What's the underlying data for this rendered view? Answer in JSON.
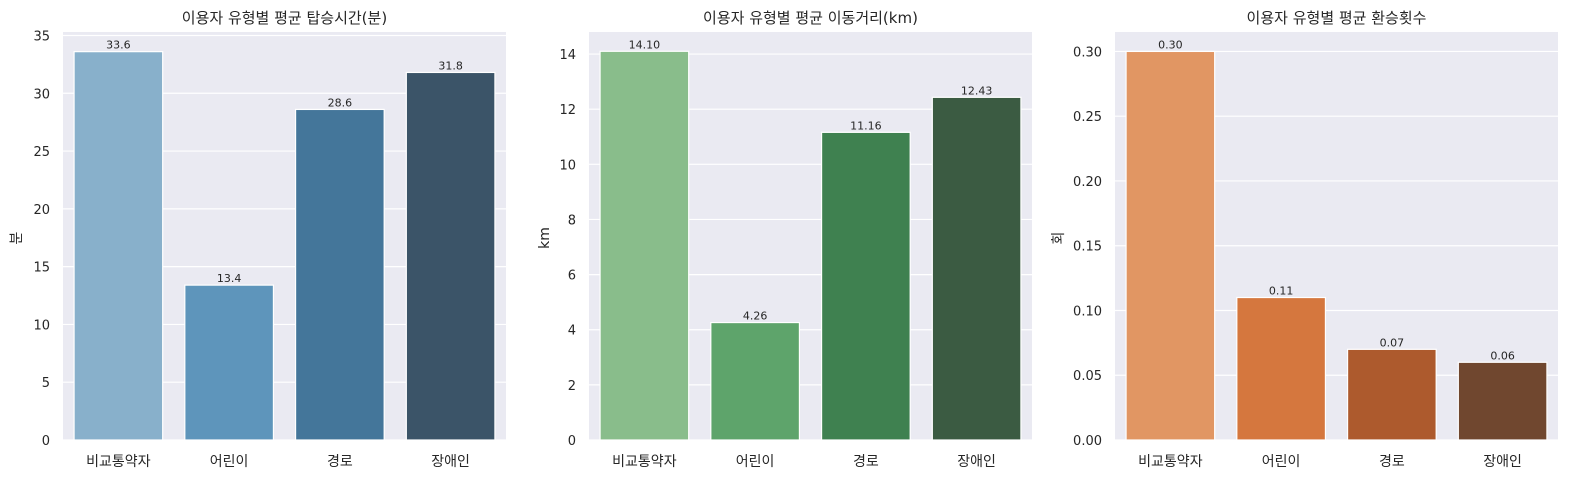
{
  "chart_data": [
    {
      "type": "bar",
      "title": "이용자 유형별 평균 탑승시간(분)",
      "xlabel": "",
      "ylabel": "분",
      "categories": [
        "비교통약자",
        "어린이",
        "경로",
        "장애인"
      ],
      "values": [
        33.6,
        13.4,
        28.6,
        31.8
      ],
      "data_labels": [
        "33.6",
        "13.4",
        "28.6",
        "31.8"
      ],
      "colors": [
        "#88b0cb",
        "#5e95bb",
        "#44769a",
        "#3b5468"
      ],
      "ylim": [
        0,
        35.3
      ],
      "yticks": [
        0,
        5,
        10,
        15,
        20,
        25,
        30,
        35
      ],
      "ytick_labels": [
        "0",
        "5",
        "10",
        "15",
        "20",
        "25",
        "30",
        "35"
      ],
      "grid": true
    },
    {
      "type": "bar",
      "title": "이용자 유형별 평균 이동거리(km)",
      "xlabel": "",
      "ylabel": "km",
      "categories": [
        "비교통약자",
        "어린이",
        "경로",
        "장애인"
      ],
      "values": [
        14.1,
        4.26,
        11.16,
        12.43
      ],
      "data_labels": [
        "14.10",
        "4.26",
        "11.16",
        "12.43"
      ],
      "colors": [
        "#89bd8b",
        "#5ea46b",
        "#3f8150",
        "#3b5b42"
      ],
      "ylim": [
        0,
        14.8
      ],
      "yticks": [
        0,
        2,
        4,
        6,
        8,
        10,
        12,
        14
      ],
      "ytick_labels": [
        "0",
        "2",
        "4",
        "6",
        "8",
        "10",
        "12",
        "14"
      ],
      "grid": true
    },
    {
      "type": "bar",
      "title": "이용자 유형별 평균 환승횟수",
      "xlabel": "",
      "ylabel": "회",
      "categories": [
        "비교통약자",
        "어린이",
        "경로",
        "장애인"
      ],
      "values": [
        0.3,
        0.11,
        0.07,
        0.06
      ],
      "data_labels": [
        "0.30",
        "0.11",
        "0.07",
        "0.06"
      ],
      "colors": [
        "#e19663",
        "#d5773e",
        "#ad5a2d",
        "#70472f"
      ],
      "ylim": [
        0,
        0.315
      ],
      "yticks": [
        0,
        0.05,
        0.1,
        0.15,
        0.2,
        0.25,
        0.3
      ],
      "ytick_labels": [
        "0.00",
        "0.05",
        "0.10",
        "0.15",
        "0.20",
        "0.25",
        "0.30"
      ],
      "grid": true
    }
  ]
}
